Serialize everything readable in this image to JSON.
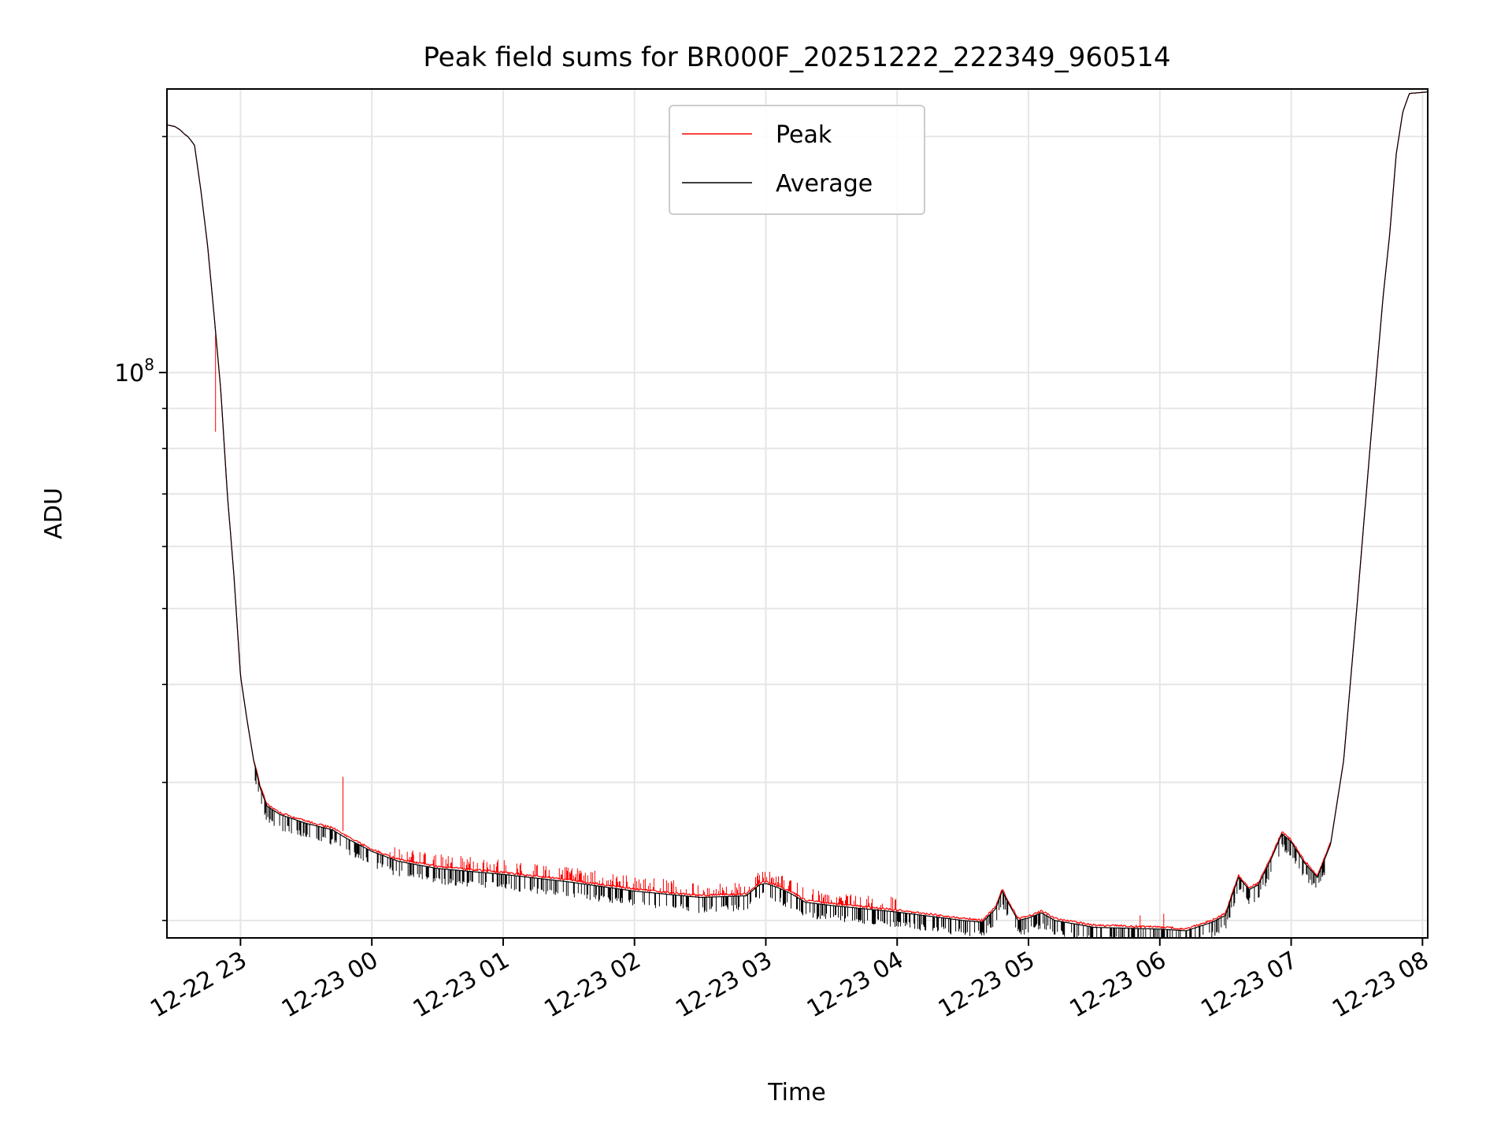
{
  "chart_data": {
    "type": "line",
    "title": "Peak field sums for BR000F_20251222_222349_960514",
    "xlabel": "Time",
    "ylabel": "ADU",
    "yscale": "log",
    "ylim": [
      19000000,
      230000000
    ],
    "xlim_hours": [
      -0.56,
      9.04
    ],
    "x_ticks": [
      {
        "label": "12-22 23",
        "hours": 0
      },
      {
        "label": "12-23 00",
        "hours": 1
      },
      {
        "label": "12-23 01",
        "hours": 2
      },
      {
        "label": "12-23 02",
        "hours": 3
      },
      {
        "label": "12-23 03",
        "hours": 4
      },
      {
        "label": "12-23 04",
        "hours": 5
      },
      {
        "label": "12-23 05",
        "hours": 6
      },
      {
        "label": "12-23 06",
        "hours": 7
      },
      {
        "label": "12-23 07",
        "hours": 8
      },
      {
        "label": "12-23 08",
        "hours": 9
      }
    ],
    "y_major_ticks": [
      {
        "value": 100000000,
        "base": "10",
        "exp": "8"
      }
    ],
    "y_minor_ticks": [
      20000000,
      30000000,
      40000000,
      50000000,
      60000000,
      70000000,
      80000000,
      90000000,
      200000000
    ],
    "grid": true,
    "legend": {
      "position": "top-center",
      "entries": [
        "Peak",
        "Average"
      ]
    },
    "series": [
      {
        "name": "Peak",
        "color": "#ff0000"
      },
      {
        "name": "Average",
        "color": "#000000"
      }
    ],
    "avg_curve": [
      [
        -0.56,
        207000000
      ],
      [
        -0.5,
        206000000
      ],
      [
        -0.46,
        204000000
      ],
      [
        -0.42,
        201000000
      ],
      [
        -0.4,
        200000000
      ],
      [
        -0.35,
        195000000
      ],
      [
        -0.3,
        170000000
      ],
      [
        -0.25,
        145000000
      ],
      [
        -0.2,
        118000000
      ],
      [
        -0.15,
        95000000
      ],
      [
        -0.1,
        70000000
      ],
      [
        -0.05,
        55000000
      ],
      [
        0.0,
        41000000
      ],
      [
        0.05,
        36000000
      ],
      [
        0.1,
        32000000
      ],
      [
        0.15,
        29500000
      ],
      [
        0.2,
        28000000
      ],
      [
        0.3,
        27300000
      ],
      [
        0.5,
        26600000
      ],
      [
        0.7,
        26100000
      ],
      [
        0.8,
        25500000
      ],
      [
        1.0,
        24500000
      ],
      [
        1.2,
        23800000
      ],
      [
        1.5,
        23300000
      ],
      [
        2.0,
        22900000
      ],
      [
        2.5,
        22400000
      ],
      [
        3.0,
        21800000
      ],
      [
        3.5,
        21400000
      ],
      [
        3.85,
        21500000
      ],
      [
        3.95,
        22200000
      ],
      [
        4.0,
        22300000
      ],
      [
        4.1,
        22000000
      ],
      [
        4.2,
        21600000
      ],
      [
        4.3,
        21100000
      ],
      [
        4.5,
        20900000
      ],
      [
        5.0,
        20500000
      ],
      [
        5.5,
        20000000
      ],
      [
        5.65,
        19900000
      ],
      [
        5.75,
        20700000
      ],
      [
        5.8,
        21800000
      ],
      [
        5.85,
        21000000
      ],
      [
        5.92,
        20000000
      ],
      [
        6.0,
        20150000
      ],
      [
        6.1,
        20450000
      ],
      [
        6.2,
        20000000
      ],
      [
        6.5,
        19600000
      ],
      [
        7.0,
        19500000
      ],
      [
        7.2,
        19400000
      ],
      [
        7.4,
        19900000
      ],
      [
        7.5,
        20300000
      ],
      [
        7.55,
        21500000
      ],
      [
        7.6,
        22700000
      ],
      [
        7.68,
        21900000
      ],
      [
        7.75,
        22200000
      ],
      [
        7.85,
        24000000
      ],
      [
        7.93,
        25800000
      ],
      [
        8.0,
        25200000
      ],
      [
        8.1,
        23700000
      ],
      [
        8.2,
        22700000
      ],
      [
        8.3,
        25000000
      ],
      [
        8.4,
        32000000
      ],
      [
        8.5,
        50000000
      ],
      [
        8.6,
        80000000
      ],
      [
        8.7,
        125000000
      ],
      [
        8.75,
        150000000
      ],
      [
        8.8,
        190000000
      ],
      [
        8.85,
        215000000
      ],
      [
        8.9,
        227000000
      ],
      [
        9.04,
        228000000
      ]
    ]
  }
}
